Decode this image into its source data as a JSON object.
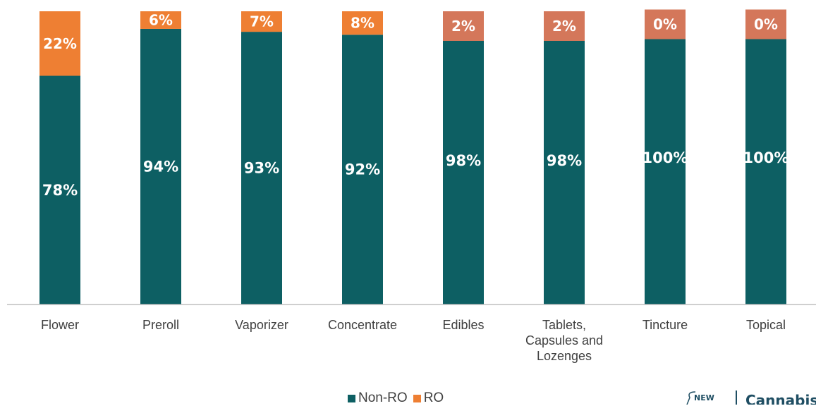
{
  "chart_data": {
    "type": "bar",
    "stacked": true,
    "categories": [
      "Flower",
      "Preroll",
      "Vaporizer",
      "Concentrate",
      "Edibles",
      "Tablets,\nCapsules and\nLozenges",
      "Tincture",
      "Topical"
    ],
    "series": [
      {
        "name": "Non-RO",
        "color": "#0d5f63",
        "values": [
          78,
          94,
          93,
          92,
          98,
          98,
          100,
          100
        ],
        "labels": [
          "78%",
          "94%",
          "93%",
          "92%",
          "98%",
          "98%",
          "100%",
          "100%"
        ]
      },
      {
        "name": "RO",
        "color": "#ee7f33",
        "values": [
          22,
          6,
          7,
          8,
          2,
          2,
          0,
          0
        ],
        "labels": [
          "22%",
          "6%",
          "7%",
          "8%",
          "2%",
          "2%",
          "0%",
          "0%"
        ]
      }
    ],
    "ylim": [
      0,
      100
    ],
    "grid": false,
    "legend_position": "bottom",
    "ro_label_box_color": "#d4775a"
  },
  "legend": {
    "items": [
      "Non-RO",
      "RO"
    ]
  },
  "logo": {
    "prefix": "NEW",
    "name": "Cannabis"
  }
}
